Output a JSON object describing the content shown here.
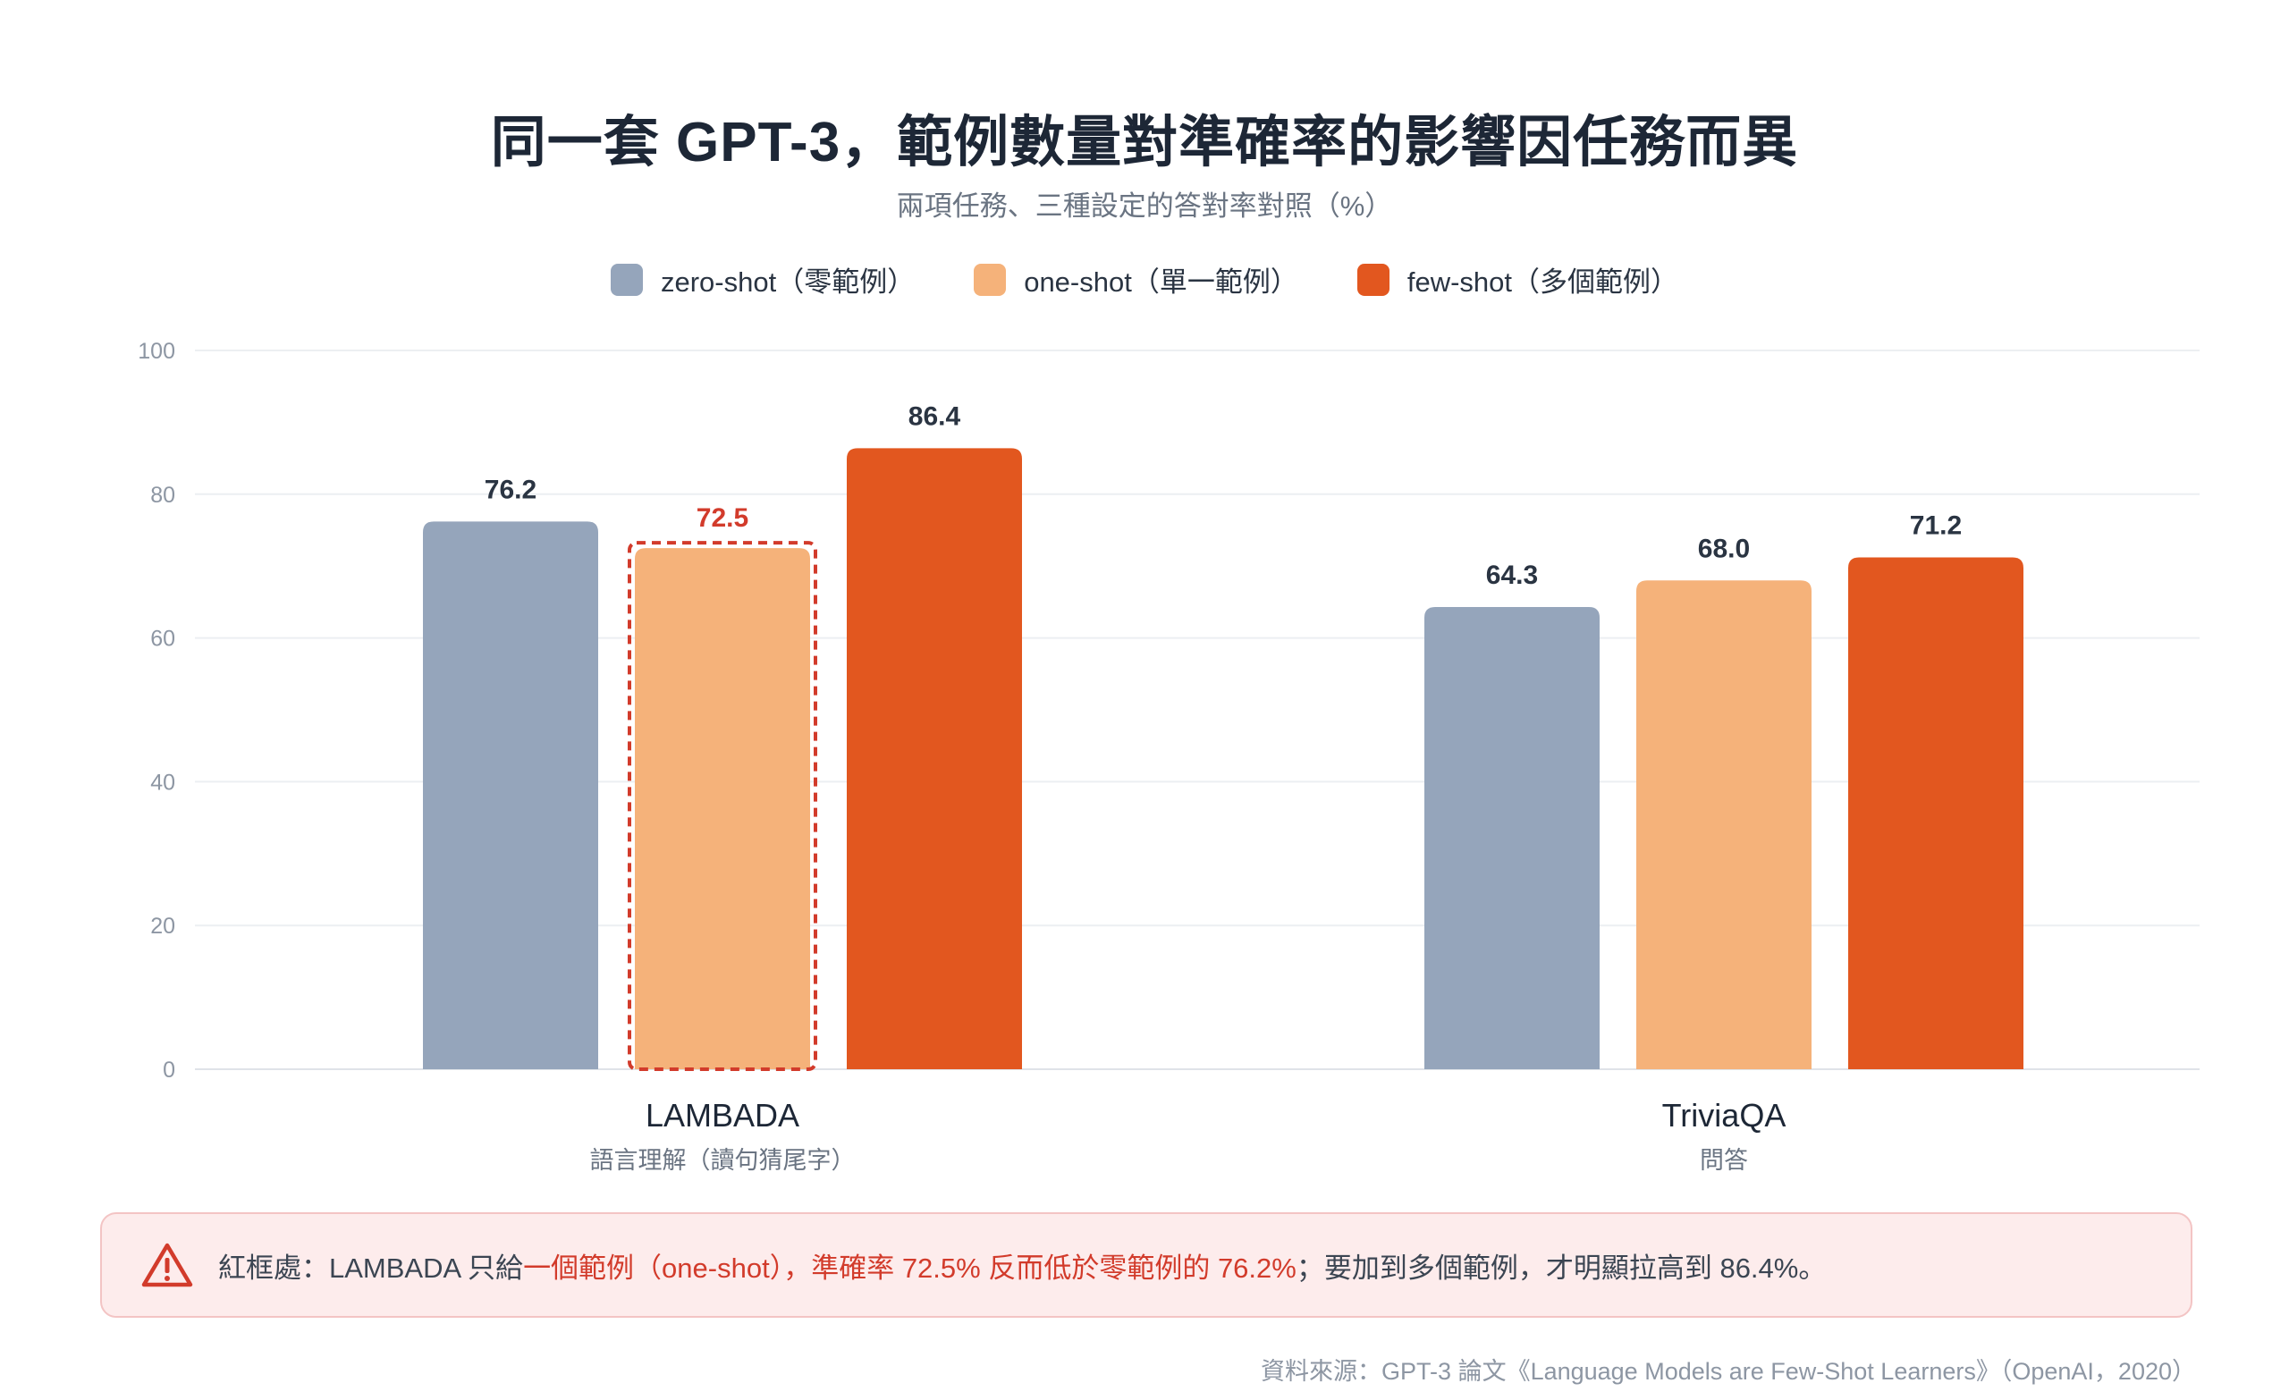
{
  "title": "同一套 GPT-3，範例數量對準確率的影響因任務而異",
  "subtitle": "兩項任務、三種設定的答對率對照（%）",
  "colors": {
    "zero": "#95a5bb",
    "one": "#f5b27a",
    "few": "#e2571f",
    "highlight_label": "#d23b2b",
    "dashed_box": "#d23b2b"
  },
  "legend": [
    {
      "key": "zero",
      "label": "zero-shot（零範例）"
    },
    {
      "key": "one",
      "label": "one-shot（單一範例）"
    },
    {
      "key": "few",
      "label": "few-shot（多個範例）"
    }
  ],
  "chart_data": {
    "type": "bar",
    "categories": [
      "LAMBADA",
      "TriviaQA"
    ],
    "category_sublabels": [
      "語言理解（讀句猜尾字）",
      "問答"
    ],
    "series": [
      {
        "name": "zero-shot（零範例）",
        "key": "zero",
        "values": [
          76.2,
          64.3
        ]
      },
      {
        "name": "one-shot（單一範例）",
        "key": "one",
        "values": [
          72.5,
          68.0
        ]
      },
      {
        "name": "few-shot（多個範例）",
        "key": "few",
        "values": [
          86.4,
          71.2
        ]
      }
    ],
    "value_labels": [
      [
        "76.2",
        "64.3"
      ],
      [
        "72.5",
        "68.0"
      ],
      [
        "86.4",
        "71.2"
      ]
    ],
    "ylim": [
      0,
      100
    ],
    "yticks": [
      0,
      20,
      40,
      60,
      80,
      100
    ],
    "grid": true,
    "highlight": {
      "series": 1,
      "category": 0
    }
  },
  "callout": {
    "icon": "warning-triangle-icon",
    "prefix": "紅框處：LAMBADA 只給",
    "part1": "一個範例（one-shot），準確率 72.5% 反而低於零範例的 76.2%",
    "part2": "；要加到多個範例，才明顯拉高到 86.4%。"
  },
  "source": "資料來源：GPT-3 論文《Language Models are Few-Shot Learners》（OpenAI，2020）"
}
